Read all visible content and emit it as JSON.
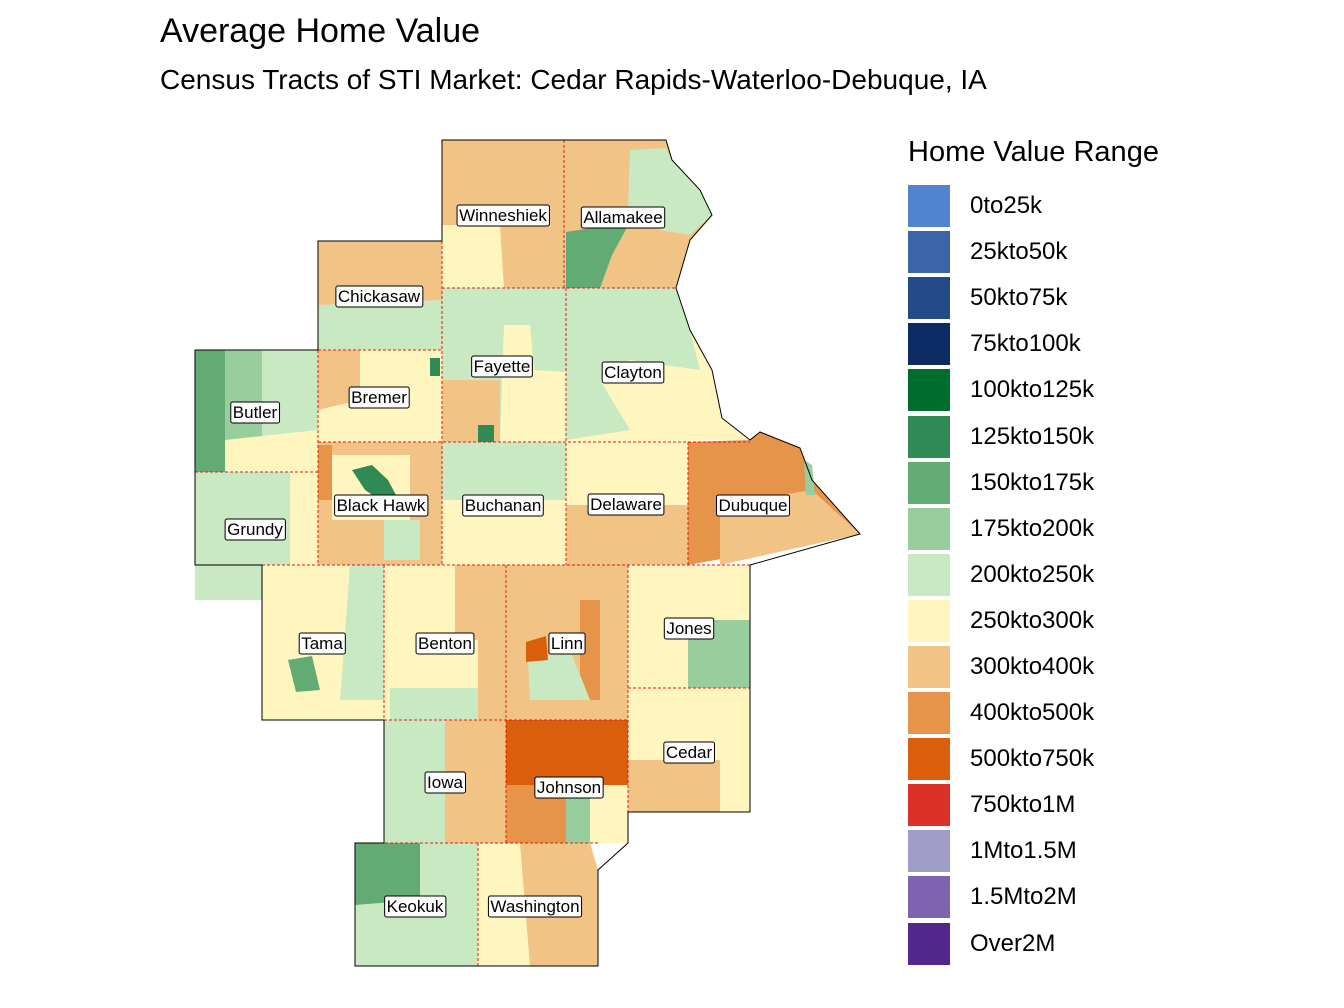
{
  "title": "Average Home Value",
  "subtitle": "Census Tracts of STI Market: Cedar Rapids-Waterloo-Debuque, IA",
  "legend": {
    "title": "Home Value Range",
    "items": [
      {
        "label": "0to25k",
        "color": "#5283cf"
      },
      {
        "label": "25kto50k",
        "color": "#3a65a9"
      },
      {
        "label": "50kto75k",
        "color": "#234b87"
      },
      {
        "label": "75kto100k",
        "color": "#0c2c63"
      },
      {
        "label": "100kto125k",
        "color": "#006d2c"
      },
      {
        "label": "125kto150k",
        "color": "#308a53"
      },
      {
        "label": "150kto175k",
        "color": "#62ab74"
      },
      {
        "label": "175kto200k",
        "color": "#98ce9e"
      },
      {
        "label": "200kto250k",
        "color": "#c9e9c2"
      },
      {
        "label": "250kto300k",
        "color": "#fff6bf"
      },
      {
        "label": "300kto400k",
        "color": "#f1c385"
      },
      {
        "label": "400kto500k",
        "color": "#e6944a"
      },
      {
        "label": "500kto750k",
        "color": "#db5e0d"
      },
      {
        "label": "750kto1M",
        "color": "#db3129"
      },
      {
        "label": "1Mto1.5M",
        "color": "#a09ec9"
      },
      {
        "label": "1.5Mto2M",
        "color": "#7e63ae"
      },
      {
        "label": "Over2M",
        "color": "#52288f"
      }
    ]
  },
  "counties": [
    "Winneshiek",
    "Allamakee",
    "Chickasaw",
    "Fayette",
    "Clayton",
    "Bremer",
    "Butler",
    "Black Hawk",
    "Buchanan",
    "Delaware",
    "Dubuque",
    "Grundy",
    "Tama",
    "Benton",
    "Linn",
    "Jones",
    "Cedar",
    "Iowa",
    "Johnson",
    "Keokuk",
    "Washington"
  ]
}
